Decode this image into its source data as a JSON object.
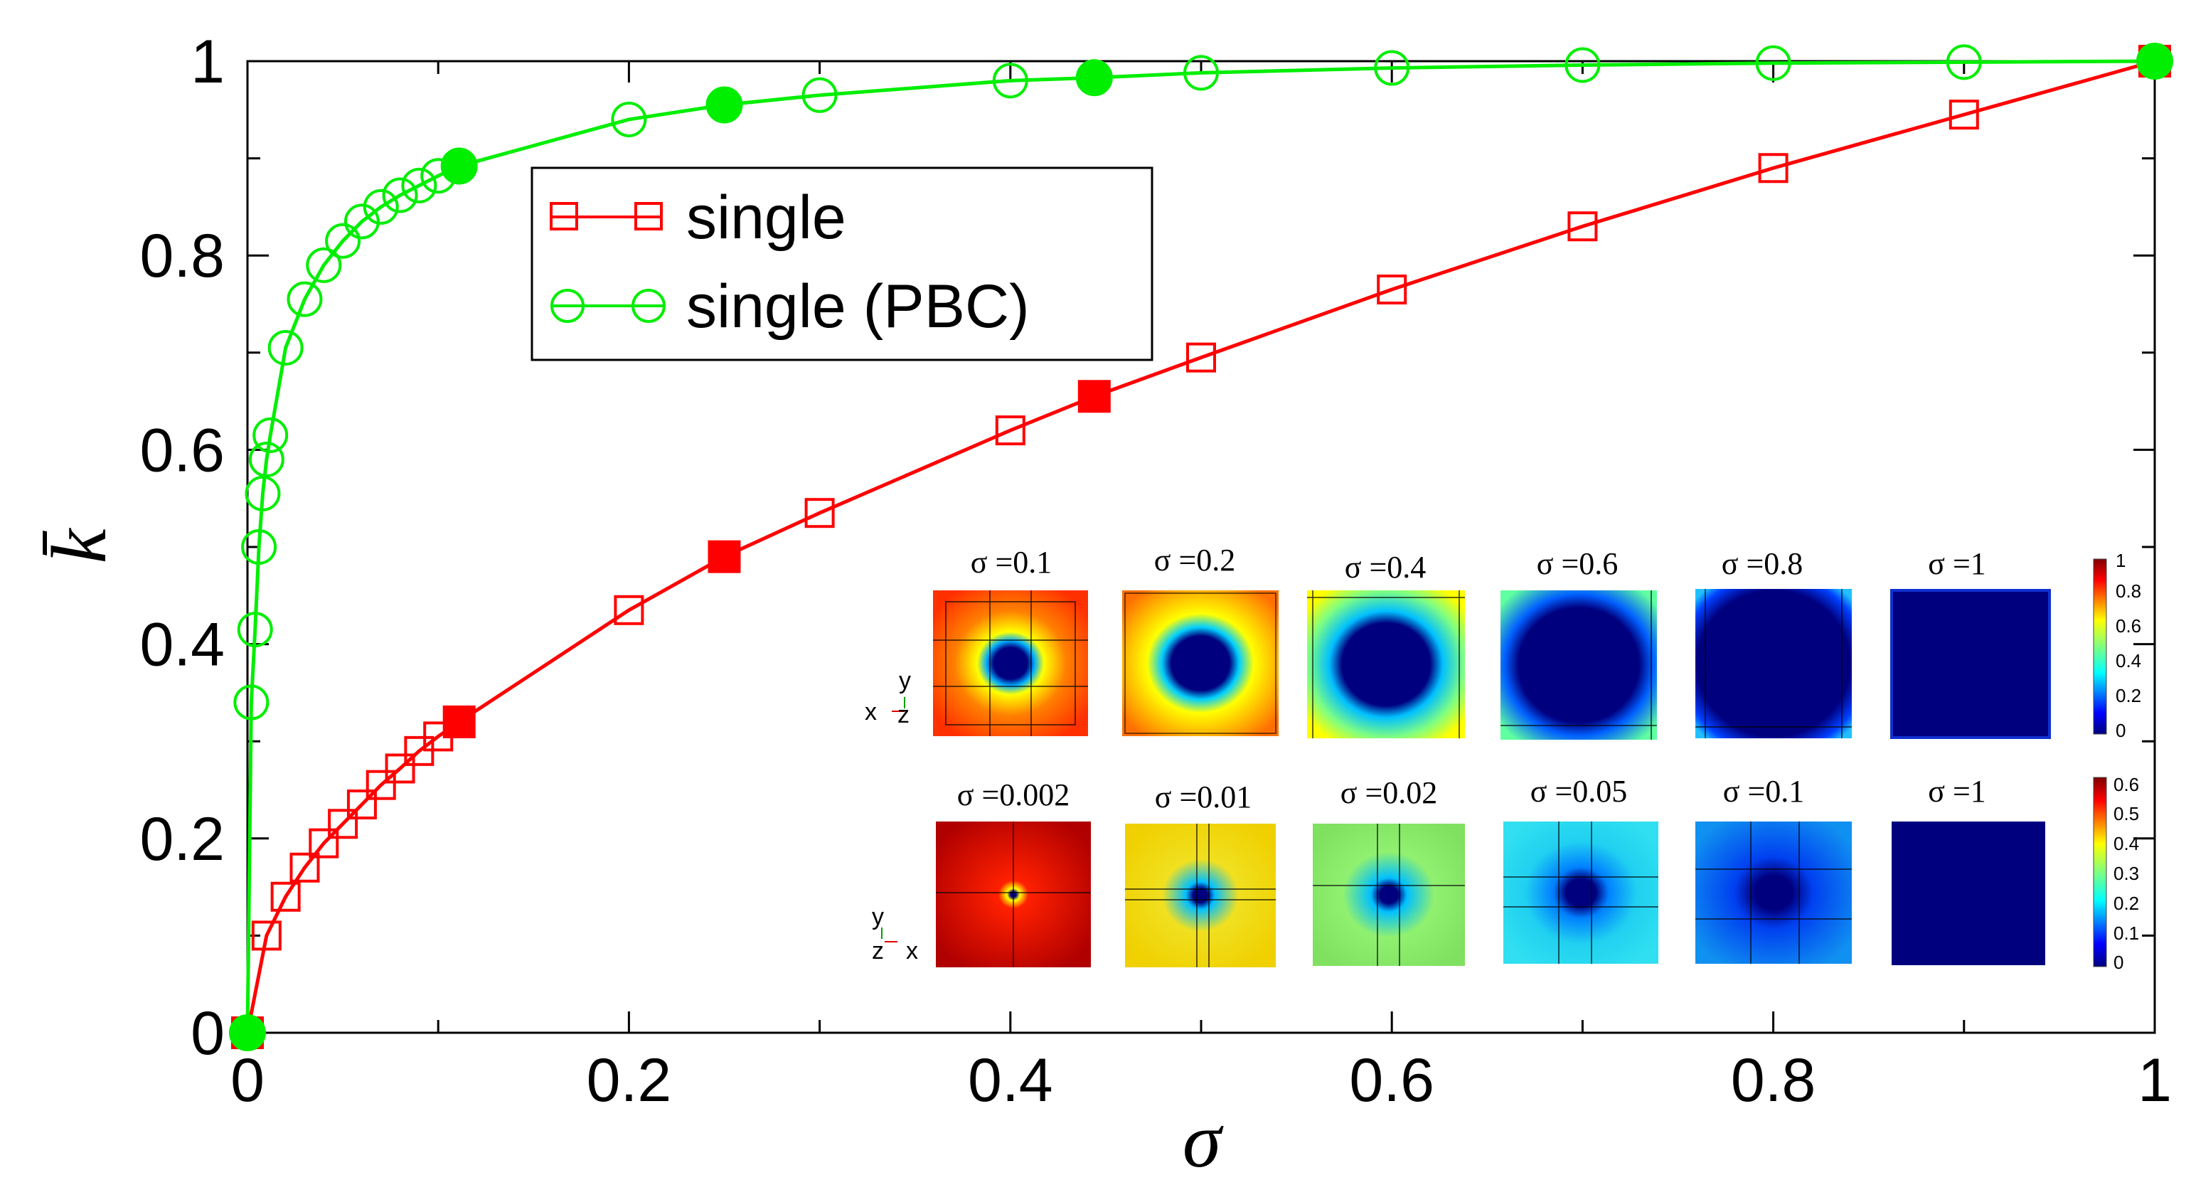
{
  "chart_data": {
    "type": "line",
    "xlabel": "σ",
    "ylabel": "k̄",
    "xlim": [
      0,
      1
    ],
    "ylim": [
      0,
      1
    ],
    "x_ticks": [
      "0",
      "0.2",
      "0.4",
      "0.6",
      "0.8",
      "1"
    ],
    "y_ticks": [
      "0",
      "0.2",
      "0.4",
      "0.6",
      "0.8",
      "1"
    ],
    "legend": {
      "position": "top-left",
      "entries": [
        "single",
        "single (PBC)"
      ]
    },
    "series": [
      {
        "name": "single",
        "color": "#ff0000",
        "marker": "square",
        "x": [
          0,
          0.01,
          0.02,
          0.03,
          0.04,
          0.05,
          0.06,
          0.07,
          0.08,
          0.09,
          0.1,
          0.111,
          0.2,
          0.25,
          0.3,
          0.4,
          0.444,
          0.5,
          0.6,
          0.7,
          0.8,
          0.9,
          1
        ],
        "y": [
          0,
          0.1,
          0.14,
          0.17,
          0.195,
          0.215,
          0.235,
          0.255,
          0.272,
          0.29,
          0.305,
          0.32,
          0.435,
          0.49,
          0.535,
          0.62,
          0.655,
          0.695,
          0.765,
          0.83,
          0.89,
          0.945,
          1
        ],
        "filled": [
          0,
          11,
          13,
          16,
          22
        ]
      },
      {
        "name": "single (PBC)",
        "color": "#00ee00",
        "marker": "circle",
        "x": [
          0,
          0.002,
          0.004,
          0.006,
          0.008,
          0.01,
          0.012,
          0.02,
          0.03,
          0.04,
          0.05,
          0.06,
          0.07,
          0.08,
          0.09,
          0.1,
          0.111,
          0.2,
          0.25,
          0.3,
          0.4,
          0.444,
          0.5,
          0.6,
          0.7,
          0.8,
          0.9,
          1
        ],
        "y": [
          0,
          0.34,
          0.415,
          0.5,
          0.555,
          0.59,
          0.615,
          0.705,
          0.755,
          0.79,
          0.815,
          0.835,
          0.85,
          0.862,
          0.872,
          0.882,
          0.892,
          0.94,
          0.955,
          0.965,
          0.98,
          0.983,
          0.988,
          0.993,
          0.996,
          0.998,
          0.999,
          1
        ],
        "filled": [
          0,
          16,
          18,
          21,
          27
        ]
      }
    ],
    "insets": {
      "row1": {
        "labels": [
          "σ =0.1",
          "σ =0.2",
          "σ =0.4",
          "σ =0.6",
          "σ =0.8",
          "σ =1"
        ],
        "colorbar_ticks": [
          "1",
          "0.8",
          "0.6",
          "0.4",
          "0.2",
          "0"
        ],
        "axes": {
          "up": "y",
          "left": "x",
          "out": "z"
        }
      },
      "row2": {
        "labels": [
          "σ =0.002",
          "σ =0.01",
          "σ =0.02",
          "σ =0.05",
          "σ =0.1",
          "σ =1"
        ],
        "colorbar_ticks": [
          "0.6",
          "0.5",
          "0.4",
          "0.3",
          "0.2",
          "0.1",
          "0"
        ],
        "axes": {
          "up": "y",
          "right": "x",
          "out": "z"
        }
      }
    }
  }
}
